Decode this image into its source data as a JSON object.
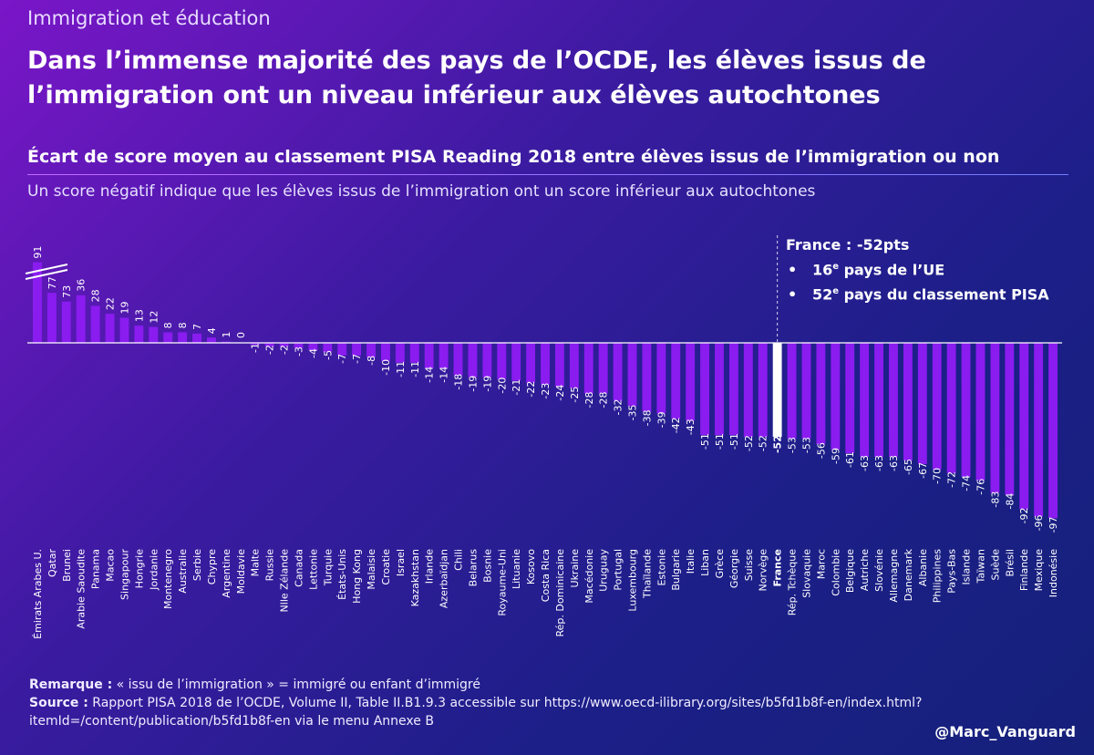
{
  "header": {
    "kicker": "Immigration et éducation",
    "title": "Dans l’immense majorité des pays de l’OCDE, les élèves issus de l’immigration ont un niveau inférieur aux élèves autochtones"
  },
  "chart_data": {
    "type": "bar",
    "title": "Écart de score moyen au classement PISA Reading 2018 entre élèves issus de l’immigration ou non",
    "subtitle": "Un score négatif indique que les élèves issus de l’immigration ont un score inférieur aux autochtones",
    "xlabel": "",
    "ylabel": "",
    "ylim": [
      -97,
      91
    ],
    "categories": [
      "Émirats Arabes U.",
      "Qatar",
      "Brunei",
      "Arabie Saoudite",
      "Panama",
      "Macao",
      "Singapour",
      "Hongrie",
      "Jordanie",
      "Montenegro",
      "Australie",
      "Serbie",
      "Chypre",
      "Argentine",
      "Moldavie",
      "Malte",
      "Russie",
      "Nlle Zélande",
      "Canada",
      "Lettonie",
      "Turquie",
      "États-Unis",
      "Hong Kong",
      "Malaisie",
      "Croatie",
      "Israel",
      "Kazakhstan",
      "Irlande",
      "Azerbaïdjan",
      "Chili",
      "Belarus",
      "Bosnie",
      "Royaume-Uni",
      "Lituanie",
      "Kosovo",
      "Costa Rica",
      "Rép. Dominicaine",
      "Ukraine",
      "Macédonie",
      "Uruguay",
      "Portugal",
      "Luxembourg",
      "Thaïlande",
      "Estonie",
      "Bulgarie",
      "Italie",
      "Liban",
      "Grèce",
      "Géorgie",
      "Suisse",
      "Norvège",
      "France",
      "Rép. Tchèque",
      "Slovaquie",
      "Maroc",
      "Colombie",
      "Belgique",
      "Autriche",
      "Slovénie",
      "Allemagne",
      "Danemark",
      "Albanie",
      "Philippines",
      "Pays-Bas",
      "Islande",
      "Taïwan",
      "Suède",
      "Brésil",
      "Finlande",
      "Mexique",
      "Indonésie"
    ],
    "values": [
      91,
      77,
      73,
      36,
      28,
      22,
      19,
      13,
      12,
      8,
      8,
      7,
      4,
      1,
      0,
      -1,
      -2,
      -2,
      -3,
      -4,
      -5,
      -7,
      -7,
      -8,
      -10,
      -11,
      -11,
      -14,
      -14,
      -18,
      -19,
      -19,
      -20,
      -21,
      -22,
      -23,
      -24,
      -25,
      -28,
      -28,
      -32,
      -35,
      -38,
      -39,
      -42,
      -43,
      -51,
      -51,
      -51,
      -52,
      -52,
      -52,
      -53,
      -53,
      -56,
      -59,
      -61,
      -63,
      -63,
      -63,
      -65,
      -67,
      -70,
      -72,
      -74,
      -76,
      -83,
      -84,
      -92,
      -96,
      -97
    ],
    "highlight": "France",
    "axis_break_categories": [
      "Émirats Arabes U.",
      "Qatar",
      "Brunei"
    ],
    "bar_color": "#8a1cf0",
    "highlight_color": "#ffffff"
  },
  "callout": {
    "title": "France : -52pts",
    "line1_a": "16",
    "line1_sup": "e",
    "line1_b": " pays de l’UE",
    "line2_a": "52",
    "line2_sup": "e",
    "line2_b": " pays du classement PISA"
  },
  "footer": {
    "remark_label": "Remarque :",
    "remark_text": " « issu de l’immigration » = immigré ou enfant d’immigré",
    "source_label": "Source :",
    "source_text": " Rapport PISA 2018 de l’OCDE, Volume II, Table II.B1.9.3 accessible sur https://www.oecd-ilibrary.org/sites/b5fd1b8f-en/index.html?itemId=/content/publication/b5fd1b8f-en via le menu Annexe B",
    "handle": "@Marc_Vanguard"
  }
}
